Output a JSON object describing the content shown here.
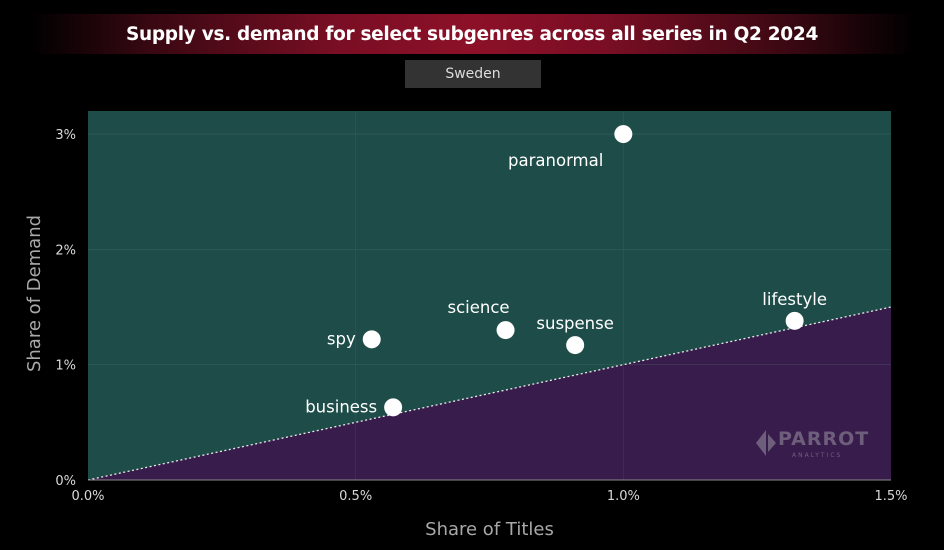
{
  "title": "Supply vs. demand for select subgenres across all series in Q2 2024",
  "filter": {
    "label": "Sweden"
  },
  "logo": {
    "name": "PARROT",
    "sub": "ANALYTICS"
  },
  "colors": {
    "above": "#1e4d49",
    "below": "#381c4b",
    "point": "#ffffff"
  },
  "chart_data": {
    "type": "scatter",
    "xlabel": "Share of Titles",
    "ylabel": "Share of Demand",
    "xlim": [
      0,
      1.5
    ],
    "ylim": [
      0,
      3.2
    ],
    "xticks": [
      {
        "value": 0,
        "label": "0.0%"
      },
      {
        "value": 0.5,
        "label": "0.5%"
      },
      {
        "value": 1.0,
        "label": "1.0%"
      },
      {
        "value": 1.5,
        "label": "1.5%"
      }
    ],
    "yticks": [
      {
        "value": 0,
        "label": "0%"
      },
      {
        "value": 1,
        "label": "1%"
      },
      {
        "value": 2,
        "label": "2%"
      },
      {
        "value": 3,
        "label": "3%"
      }
    ],
    "reference_line": {
      "from": [
        0,
        0
      ],
      "to": [
        1.5,
        1.5
      ],
      "style": "dotted"
    },
    "points": [
      {
        "label": "paranormal",
        "x": 1.0,
        "y": 3.0,
        "label_pos": "below-left"
      },
      {
        "label": "lifestyle",
        "x": 1.32,
        "y": 1.38,
        "label_pos": "above"
      },
      {
        "label": "science",
        "x": 0.78,
        "y": 1.3,
        "label_pos": "above-left"
      },
      {
        "label": "spy",
        "x": 0.53,
        "y": 1.22,
        "label_pos": "left"
      },
      {
        "label": "suspense",
        "x": 0.91,
        "y": 1.17,
        "label_pos": "above"
      },
      {
        "label": "business",
        "x": 0.57,
        "y": 0.63,
        "label_pos": "left"
      }
    ]
  }
}
